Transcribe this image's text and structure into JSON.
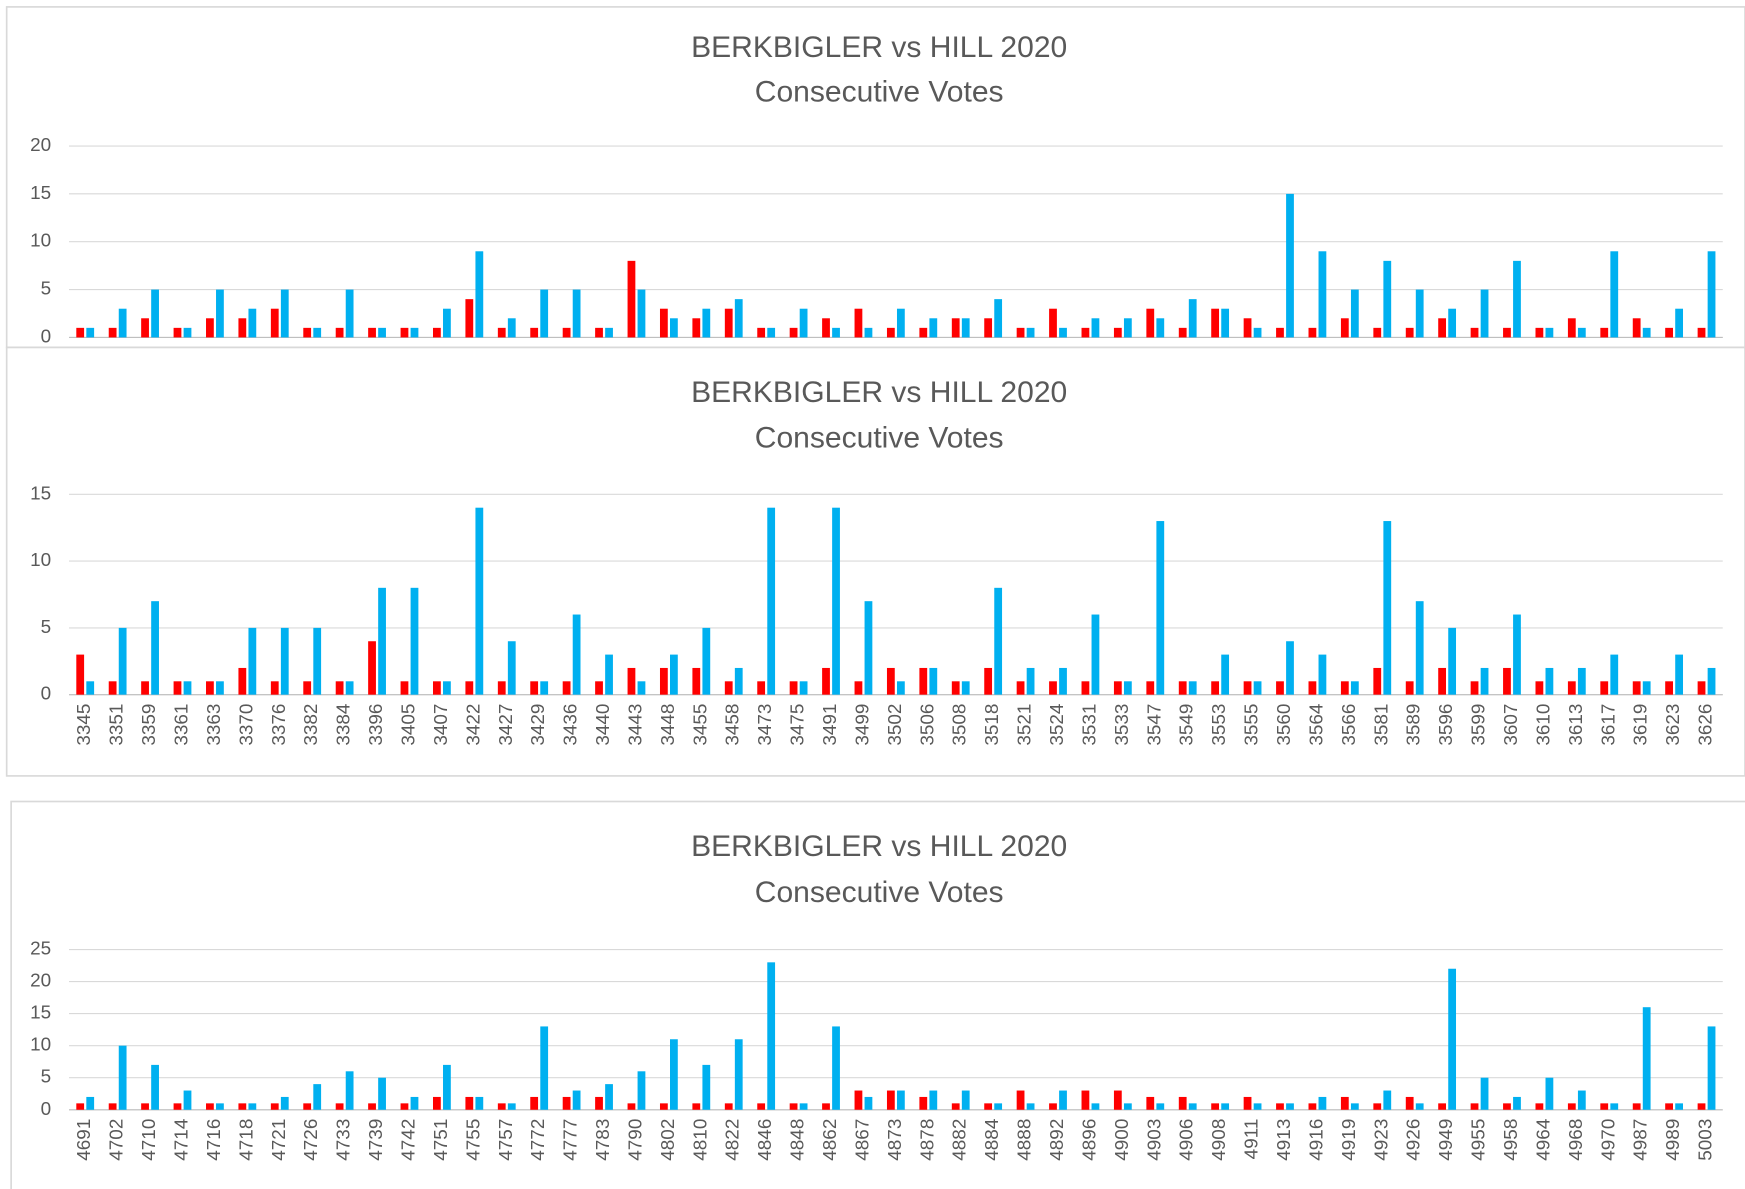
{
  "chart_data": [
    {
      "type": "bar",
      "title": "BERKBIGLER vs HILL  2020",
      "subtitle": "Consecutive Votes",
      "categories": [
        null,
        null,
        null,
        null,
        null,
        null,
        null,
        null,
        null,
        null,
        null,
        null,
        null,
        null,
        null,
        null,
        null,
        null,
        null,
        null,
        null,
        null,
        null,
        null,
        null,
        null,
        null,
        null,
        null,
        null,
        null,
        null,
        null,
        null,
        null,
        null,
        null,
        null,
        null,
        null,
        null,
        null,
        null,
        null,
        null,
        null,
        null,
        null,
        null,
        null,
        null
      ],
      "series": [
        {
          "color": "#ff0000",
          "values": [
            1,
            1,
            2,
            1,
            2,
            2,
            3,
            1,
            1,
            1,
            1,
            1,
            4,
            1,
            1,
            1,
            1,
            8,
            3,
            2,
            3,
            1,
            1,
            2,
            3,
            1,
            1,
            2,
            2,
            1,
            3,
            1,
            1,
            3,
            1,
            3,
            2,
            1,
            1,
            2,
            1,
            1,
            2,
            1,
            1,
            1,
            2,
            1,
            2,
            1,
            1
          ]
        },
        {
          "color": "#00b0f0",
          "values": [
            1,
            3,
            5,
            1,
            5,
            3,
            5,
            1,
            5,
            1,
            1,
            3,
            9,
            2,
            5,
            5,
            1,
            5,
            2,
            3,
            4,
            1,
            3,
            1,
            1,
            3,
            2,
            2,
            4,
            1,
            1,
            2,
            2,
            2,
            4,
            3,
            1,
            15,
            9,
            5,
            8,
            5,
            3,
            5,
            8,
            1,
            1,
            9,
            1,
            3,
            9
          ]
        }
      ],
      "ylim": [
        0,
        20
      ],
      "yticks": [
        0,
        5,
        10,
        15,
        20
      ],
      "grid": true
    },
    {
      "type": "bar",
      "title": "BERKBIGLER vs HILL  2020",
      "subtitle": "Consecutive Votes",
      "categories": [
        "3345",
        "3351",
        "3359",
        "3361",
        "3363",
        "3370",
        "3376",
        "3382",
        "3384",
        "3396",
        "3405",
        "3407",
        "3422",
        "3427",
        "3429",
        "3436",
        "3440",
        "3443",
        "3448",
        "3455",
        "3458",
        "3473",
        "3475",
        "3491",
        "3499",
        "3502",
        "3506",
        "3508",
        "3518",
        "3521",
        "3524",
        "3531",
        "3533",
        "3547",
        "3549",
        "3553",
        "3555",
        "3560",
        "3564",
        "3566",
        "3581",
        "3589",
        "3596",
        "3599",
        "3607",
        "3610",
        "3613",
        "3617",
        "3619",
        "3623",
        "3626"
      ],
      "series": [
        {
          "color": "#ff0000",
          "values": [
            3,
            1,
            1,
            1,
            1,
            2,
            1,
            1,
            1,
            4,
            1,
            1,
            1,
            1,
            1,
            1,
            1,
            2,
            2,
            2,
            1,
            1,
            1,
            2,
            1,
            2,
            2,
            1,
            2,
            1,
            1,
            1,
            1,
            1,
            1,
            1,
            1,
            1,
            1,
            1,
            2,
            1,
            2,
            1,
            2,
            1,
            1,
            1,
            1,
            1,
            1
          ]
        },
        {
          "color": "#00b0f0",
          "values": [
            1,
            5,
            7,
            1,
            1,
            5,
            5,
            5,
            1,
            8,
            8,
            1,
            14,
            4,
            1,
            6,
            3,
            1,
            3,
            5,
            2,
            14,
            1,
            14,
            7,
            1,
            2,
            1,
            8,
            2,
            2,
            6,
            1,
            13,
            1,
            3,
            1,
            4,
            3,
            1,
            13,
            7,
            5,
            2,
            6,
            2,
            2,
            3,
            1,
            3,
            2
          ]
        }
      ],
      "ylim": [
        0,
        15
      ],
      "yticks": [
        0,
        5,
        10,
        15
      ],
      "grid": true
    },
    {
      "type": "bar",
      "title": "BERKBIGLER vs HILL  2020",
      "subtitle": "Consecutive Votes",
      "categories": [
        "4691",
        "4702",
        "4710",
        "4714",
        "4716",
        "4718",
        "4721",
        "4726",
        "4733",
        "4739",
        "4742",
        "4751",
        "4755",
        "4757",
        "4772",
        "4777",
        "4783",
        "4790",
        "4802",
        "4810",
        "4822",
        "4846",
        "4848",
        "4862",
        "4867",
        "4873",
        "4878",
        "4882",
        "4884",
        "4888",
        "4892",
        "4896",
        "4900",
        "4903",
        "4906",
        "4908",
        "4911",
        "4913",
        "4916",
        "4919",
        "4923",
        "4926",
        "4949",
        "4955",
        "4958",
        "4964",
        "4968",
        "4970",
        "4987",
        "4989",
        "5003"
      ],
      "series": [
        {
          "color": "#ff0000",
          "values": [
            1,
            1,
            1,
            1,
            1,
            1,
            1,
            1,
            1,
            1,
            1,
            2,
            2,
            1,
            2,
            2,
            2,
            1,
            1,
            1,
            1,
            1,
            1,
            1,
            3,
            3,
            2,
            1,
            1,
            3,
            1,
            3,
            3,
            2,
            2,
            1,
            2,
            1,
            1,
            2,
            1,
            2,
            1,
            1,
            1,
            1,
            1,
            1,
            1,
            1,
            1
          ]
        },
        {
          "color": "#00b0f0",
          "values": [
            2,
            10,
            7,
            3,
            1,
            1,
            2,
            4,
            6,
            5,
            2,
            7,
            2,
            1,
            13,
            3,
            4,
            6,
            11,
            7,
            11,
            23,
            1,
            13,
            2,
            3,
            3,
            3,
            1,
            1,
            3,
            1,
            1,
            1,
            1,
            1,
            1,
            1,
            2,
            1,
            3,
            1,
            22,
            5,
            2,
            5,
            3,
            1,
            16,
            1,
            13
          ]
        }
      ],
      "ylim": [
        0,
        25
      ],
      "yticks": [
        0,
        5,
        10,
        15,
        20,
        25
      ],
      "grid": true
    }
  ]
}
